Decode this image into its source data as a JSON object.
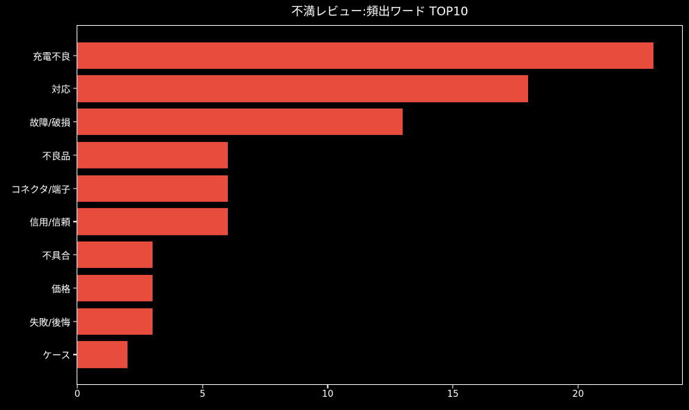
{
  "colors": {
    "background": "#000000",
    "bar": "#e74c3c",
    "text": "#ffffff",
    "spine": "#ffffff"
  },
  "chart_data": {
    "type": "bar",
    "orientation": "horizontal",
    "title": "不満レビュー:頻出ワード TOP10",
    "categories": [
      "充電不良",
      "対応",
      "故障/破損",
      "不良品",
      "コネクタ/端子",
      "信用/信頼",
      "不具合",
      "価格",
      "失敗/後悔",
      "ケース"
    ],
    "values": [
      23,
      18,
      13,
      6,
      6,
      6,
      3,
      3,
      3,
      2
    ],
    "xlabel": "",
    "ylabel": "",
    "x_ticks": [
      0,
      5,
      10,
      15,
      20
    ],
    "xlim": [
      0,
      24.15
    ],
    "grid": false,
    "legend": null
  }
}
